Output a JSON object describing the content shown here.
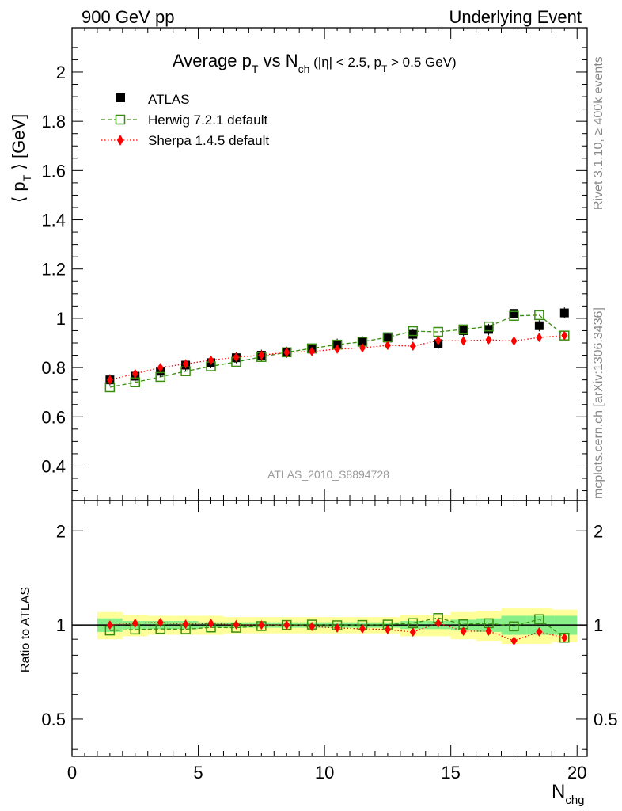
{
  "header": {
    "left": "900 GeV pp",
    "right": "Underlying Event"
  },
  "side_labels": {
    "rivet": "Rivet 3.1.10, ≥ 400k events",
    "mcplots": "mcplots.cern.ch [arXiv:1306.3436]"
  },
  "watermark": "ATLAS_2010_S8894728",
  "chart_data": {
    "type": "scatter",
    "title": {
      "prefix": "Average p",
      "sub1": "T",
      "mid": " vs N",
      "sub2": "ch",
      "paren_open": " (|η| < 2.5, p",
      "sub3": "T",
      "paren_close": " > 0.5 GeV)"
    },
    "ylabel": {
      "main": "⟨ p",
      "sub": "T",
      "end": " ⟩ [GeV]"
    },
    "xlabel": {
      "main": "N",
      "sub": "chg"
    },
    "ratio_ylabel": "Ratio to ATLAS",
    "xlim": [
      0,
      20.4
    ],
    "ylim": [
      0.26,
      2.18
    ],
    "ratio_ylim": [
      0.38,
      2.5
    ],
    "x_ticks": [
      0,
      5,
      10,
      15,
      20
    ],
    "y_ticks": [
      0.4,
      0.6,
      0.8,
      1.0,
      1.2,
      1.4,
      1.6,
      1.8,
      2.0
    ],
    "y_tick_labels": [
      "0.4",
      "0.6",
      "0.8",
      "1",
      "1.2",
      "1.4",
      "1.6",
      "1.8",
      "2"
    ],
    "ratio_ticks": [
      0.5,
      1,
      2
    ],
    "ratio_tick_labels": [
      "0.5",
      "1",
      "2"
    ],
    "x": [
      1.5,
      2.5,
      3.5,
      4.5,
      5.5,
      6.5,
      7.5,
      8.5,
      9.5,
      10.5,
      11.5,
      12.5,
      13.5,
      14.5,
      15.5,
      16.5,
      17.5,
      18.5,
      19.5
    ],
    "series": [
      {
        "name": "ATLAS",
        "color": "#000000",
        "marker": "square",
        "values": [
          0.75,
          0.765,
          0.785,
          0.81,
          0.82,
          0.84,
          0.85,
          0.862,
          0.875,
          0.895,
          0.905,
          0.92,
          0.935,
          0.897,
          0.95,
          0.955,
          1.02,
          0.97,
          1.022
        ]
      },
      {
        "name": "Herwig 7.2.1 default",
        "color": "#3a8d10",
        "marker": "open-square",
        "values": [
          0.72,
          0.74,
          0.762,
          0.785,
          0.805,
          0.823,
          0.843,
          0.862,
          0.878,
          0.893,
          0.905,
          0.923,
          0.948,
          0.945,
          0.955,
          0.967,
          1.01,
          1.013,
          0.93
        ]
      },
      {
        "name": "Sherpa 1.4.5 default",
        "color": "#ff0000",
        "marker": "diamond",
        "values": [
          0.75,
          0.775,
          0.8,
          0.815,
          0.83,
          0.842,
          0.85,
          0.862,
          0.865,
          0.875,
          0.88,
          0.89,
          0.887,
          0.91,
          0.908,
          0.913,
          0.908,
          0.922,
          0.93
        ]
      }
    ],
    "ratio_herwig": [
      0.96,
      0.967,
      0.971,
      0.969,
      0.982,
      0.98,
      0.992,
      1.0,
      1.003,
      0.998,
      1.0,
      1.003,
      1.014,
      1.053,
      1.005,
      1.013,
      0.99,
      1.044,
      0.91
    ],
    "ratio_sherpa": [
      1.0,
      1.013,
      1.019,
      1.006,
      1.012,
      1.002,
      1.0,
      1.0,
      0.989,
      0.978,
      0.972,
      0.967,
      0.949,
      1.014,
      0.955,
      0.956,
      0.89,
      0.95,
      0.91
    ],
    "band_outer": [
      0.1,
      0.08,
      0.07,
      0.07,
      0.07,
      0.06,
      0.06,
      0.06,
      0.06,
      0.06,
      0.06,
      0.06,
      0.08,
      0.08,
      0.1,
      0.11,
      0.13,
      0.13,
      0.12
    ],
    "band_inner": [
      0.05,
      0.03,
      0.03,
      0.03,
      0.02,
      0.02,
      0.02,
      0.02,
      0.02,
      0.02,
      0.02,
      0.02,
      0.03,
      0.03,
      0.04,
      0.05,
      0.07,
      0.07,
      0.07
    ],
    "band_colors": {
      "outer": "#ffff99",
      "inner": "#88ee88"
    },
    "legend_position": "top-left"
  }
}
